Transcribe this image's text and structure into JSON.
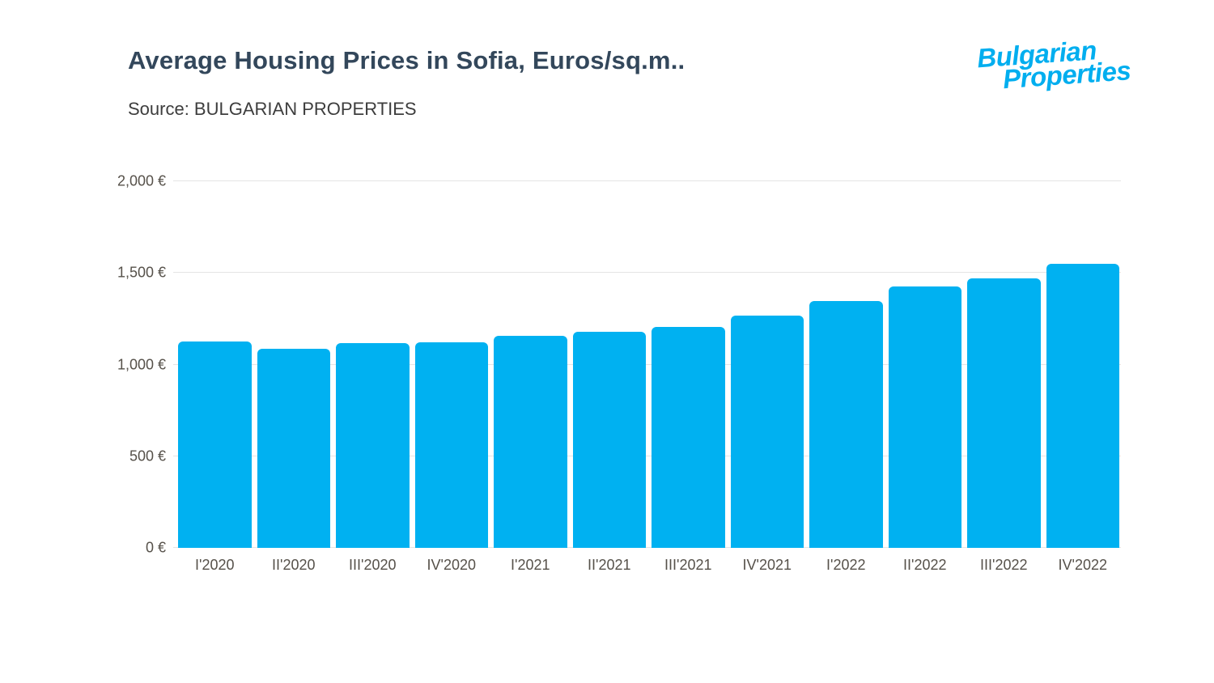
{
  "header": {
    "title": "Average Housing Prices in Sofia, Euros/sq.m..",
    "source": "Source: BULGARIAN PROPERTIES",
    "logo": {
      "line1": "Bulgarian",
      "line2": "Properties",
      "color": "#00aeef"
    }
  },
  "chart_data": {
    "type": "bar",
    "title": "Average Housing Prices in Sofia, Euros/sq.m..",
    "subtitle": "Source: BULGARIAN PROPERTIES",
    "categories": [
      "I'2020",
      "II'2020",
      "III'2020",
      "IV'2020",
      "I'2021",
      "II'2021",
      "III'2021",
      "IV'2021",
      "I'2022",
      "II'2022",
      "III'2022",
      "IV'2022"
    ],
    "values": [
      1125,
      1085,
      1115,
      1120,
      1155,
      1180,
      1205,
      1265,
      1345,
      1425,
      1470,
      1550
    ],
    "xlabel": "",
    "ylabel": "",
    "ylim": [
      0,
      2000
    ],
    "yticks": [
      {
        "value": 0,
        "label": "0 €"
      },
      {
        "value": 500,
        "label": "500 €"
      },
      {
        "value": 1000,
        "label": "1,000 €"
      },
      {
        "value": 1500,
        "label": "1,500 €"
      },
      {
        "value": 2000,
        "label": "2,000 €"
      }
    ],
    "bar_color": "#00b1f1",
    "grid": true,
    "legend_position": "none"
  }
}
